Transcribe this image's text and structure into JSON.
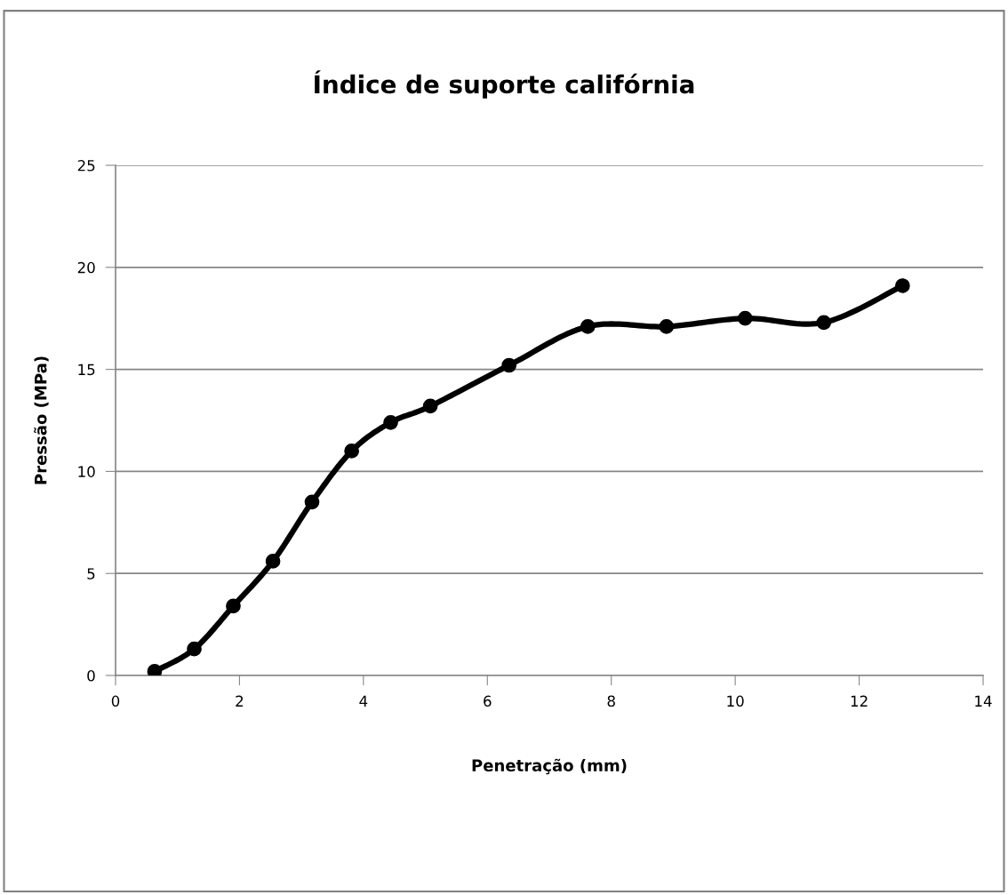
{
  "chart_data": {
    "type": "line",
    "title": "Índice de suporte califórnia",
    "xlabel": "Penetração (mm)",
    "ylabel": "Pressão (MPa)",
    "x": [
      0.63,
      1.27,
      1.9,
      2.54,
      3.17,
      3.81,
      4.44,
      5.08,
      6.35,
      7.62,
      8.89,
      10.16,
      11.43,
      12.7
    ],
    "series": [
      {
        "color": "#000000",
        "values": [
          0.2,
          1.3,
          3.4,
          5.6,
          8.5,
          11.0,
          12.4,
          13.2,
          15.2,
          17.1,
          17.1,
          17.5,
          17.3,
          19.1
        ]
      }
    ],
    "xlim": [
      0,
      14
    ],
    "xticks": [
      0,
      2,
      4,
      6,
      8,
      10,
      12,
      14
    ],
    "ylim": [
      0,
      25
    ],
    "yticks": [
      0,
      5,
      10,
      15,
      20,
      25
    ],
    "grid": "y",
    "legend": false,
    "marker": "circle",
    "line_style": "solid"
  }
}
